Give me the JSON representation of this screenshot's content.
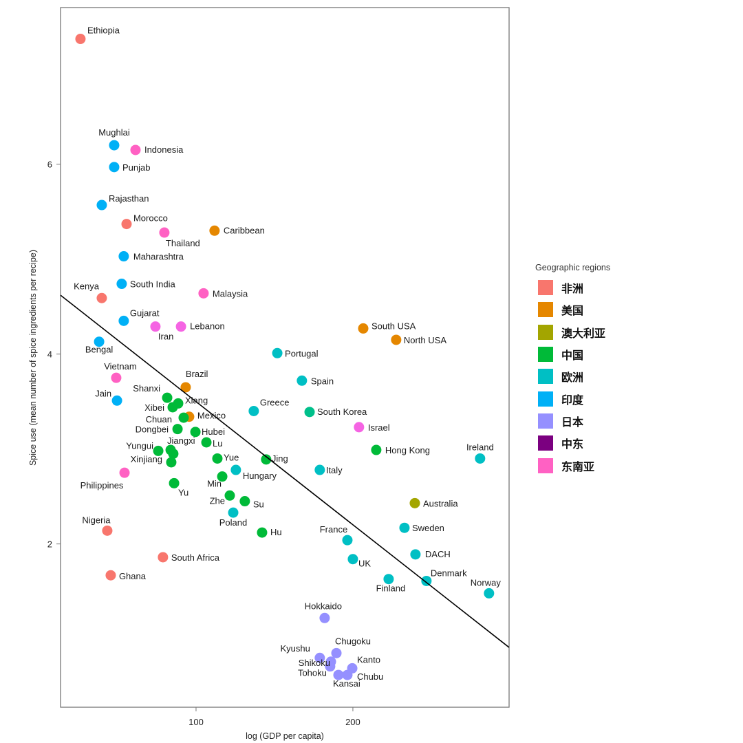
{
  "chart_data": {
    "type": "scatter",
    "title": "",
    "xlabel": "log (GDP per capita)",
    "ylabel": "Spice use (mean number of spice ingredients per recipe)",
    "xlim": [
      13.6,
      299.6
    ],
    "ylim": [
      0.28,
      7.65
    ],
    "xticks": [
      100,
      200
    ],
    "yticks": [
      2,
      4,
      6
    ],
    "grid": false,
    "legend": {
      "title": "Geographic regions",
      "placement": "right",
      "entries": [
        {
          "key": "africa",
          "label": "非洲",
          "color": "#F8766D"
        },
        {
          "key": "usa",
          "label": "美国",
          "color": "#E58700"
        },
        {
          "key": "australia",
          "label": "澳大利亚",
          "color": "#A3A500"
        },
        {
          "key": "china",
          "label": "中国",
          "color": "#00BA38"
        },
        {
          "key": "europe",
          "label": "欧洲",
          "color": "#00BFC4"
        },
        {
          "key": "india",
          "label": "印度",
          "color": "#00B0F6"
        },
        {
          "key": "japan",
          "label": "日本",
          "color": "#9590FF"
        },
        {
          "key": "middle_east",
          "label": "中东",
          "color": "#7B0080"
        },
        {
          "key": "southeast_asia",
          "label": "东南亚",
          "color": "#FF61C3"
        }
      ]
    },
    "trend_line": {
      "x": [
        13.6,
        299.6
      ],
      "y": [
        4.62,
        0.91
      ],
      "color": "#000000"
    },
    "points": [
      {
        "name": "Ethiopia",
        "region": "africa",
        "x": 26.3,
        "y": 7.32
      },
      {
        "name": "Mughlai",
        "region": "india",
        "x": 47.8,
        "y": 6.2
      },
      {
        "name": "Indonesia",
        "region": "southeast_asia",
        "x": 61.4,
        "y": 6.15
      },
      {
        "name": "Punjab",
        "region": "india",
        "x": 47.8,
        "y": 5.97
      },
      {
        "name": "Rajasthan",
        "region": "india",
        "x": 39.9,
        "y": 5.57
      },
      {
        "name": "Morocco",
        "region": "africa",
        "x": 55.7,
        "y": 5.37
      },
      {
        "name": "Thailand",
        "region": "southeast_asia",
        "x": 79.8,
        "y": 5.28
      },
      {
        "name": "Caribbean",
        "region": "usa",
        "x": 111.8,
        "y": 5.3
      },
      {
        "name": "Maharashtra",
        "region": "india",
        "x": 53.9,
        "y": 5.03
      },
      {
        "name": "South India",
        "region": "india",
        "x": 52.6,
        "y": 4.74
      },
      {
        "name": "Kenya",
        "region": "africa",
        "x": 39.9,
        "y": 4.59
      },
      {
        "name": "Malaysia",
        "region": "southeast_asia",
        "x": 104.8,
        "y": 4.64
      },
      {
        "name": "Gujarat",
        "region": "india",
        "x": 53.9,
        "y": 4.35
      },
      {
        "name": "Iran",
        "region": "middle_east_pink",
        "x": 74.1,
        "y": 4.29
      },
      {
        "name": "Lebanon",
        "region": "middle_east_pink",
        "x": 90.4,
        "y": 4.29
      },
      {
        "name": "Bengal",
        "region": "india",
        "x": 38.2,
        "y": 4.13
      },
      {
        "name": "South USA",
        "region": "usa",
        "x": 206.6,
        "y": 4.27
      },
      {
        "name": "North USA",
        "region": "usa",
        "x": 227.6,
        "y": 4.15
      },
      {
        "name": "Portugal",
        "region": "europe",
        "x": 151.8,
        "y": 4.01
      },
      {
        "name": "Vietnam",
        "region": "southeast_asia",
        "x": 49.1,
        "y": 3.75
      },
      {
        "name": "Spain",
        "region": "europe",
        "x": 167.5,
        "y": 3.72
      },
      {
        "name": "Brazil",
        "region": "usa",
        "x": 93.4,
        "y": 3.65
      },
      {
        "name": "Jain",
        "region": "india",
        "x": 49.6,
        "y": 3.51
      },
      {
        "name": "Shanxi",
        "region": "china",
        "x": 81.6,
        "y": 3.54
      },
      {
        "name": "Xiang",
        "region": "china",
        "x": 88.6,
        "y": 3.48
      },
      {
        "name": "Xibei",
        "region": "china",
        "x": 85.1,
        "y": 3.44
      },
      {
        "name": "Greece",
        "region": "europe",
        "x": 136.8,
        "y": 3.4
      },
      {
        "name": "South Korea",
        "region": "korea",
        "x": 172.4,
        "y": 3.39
      },
      {
        "name": "Mexico",
        "region": "usa",
        "x": 95.6,
        "y": 3.34
      },
      {
        "name": "Chuan",
        "region": "china",
        "x": 92.1,
        "y": 3.33
      },
      {
        "name": "Dongbei",
        "region": "china",
        "x": 88.2,
        "y": 3.21
      },
      {
        "name": "Hubei",
        "region": "china",
        "x": 99.6,
        "y": 3.18
      },
      {
        "name": "Israel",
        "region": "middle_east_pink",
        "x": 203.9,
        "y": 3.23
      },
      {
        "name": "Lu",
        "region": "china",
        "x": 106.6,
        "y": 3.07
      },
      {
        "name": "Hong Kong",
        "region": "china",
        "x": 214.9,
        "y": 2.99
      },
      {
        "name": "Ireland",
        "region": "europe",
        "x": 281.1,
        "y": 2.9
      },
      {
        "name": "Yungui",
        "region": "china",
        "x": 75.9,
        "y": 2.98
      },
      {
        "name": "Jiangxi",
        "region": "china",
        "x": 83.8,
        "y": 2.99
      },
      {
        "name": "",
        "region": "china",
        "x": 85.5,
        "y": 2.95
      },
      {
        "name": "Yue",
        "region": "china",
        "x": 113.6,
        "y": 2.9
      },
      {
        "name": "Jing",
        "region": "china",
        "x": 144.7,
        "y": 2.89
      },
      {
        "name": "Xinjiang",
        "region": "china",
        "x": 84.2,
        "y": 2.86
      },
      {
        "name": "Philippines",
        "region": "southeast_asia",
        "x": 54.4,
        "y": 2.75
      },
      {
        "name": "Hungary",
        "region": "europe",
        "x": 125.4,
        "y": 2.78
      },
      {
        "name": "Italy",
        "region": "europe",
        "x": 178.9,
        "y": 2.78
      },
      {
        "name": "Min",
        "region": "china",
        "x": 116.7,
        "y": 2.71
      },
      {
        "name": "Yu",
        "region": "china",
        "x": 86.0,
        "y": 2.64
      },
      {
        "name": "Zhe",
        "region": "china",
        "x": 121.5,
        "y": 2.51
      },
      {
        "name": "Su",
        "region": "china",
        "x": 131.1,
        "y": 2.45
      },
      {
        "name": "Australia",
        "region": "australia",
        "x": 239.5,
        "y": 2.43
      },
      {
        "name": "Poland",
        "region": "europe",
        "x": 123.7,
        "y": 2.33
      },
      {
        "name": "Nigeria",
        "region": "africa",
        "x": 43.4,
        "y": 2.14
      },
      {
        "name": "Sweden",
        "region": "europe",
        "x": 232.9,
        "y": 2.17
      },
      {
        "name": "Hu",
        "region": "china",
        "x": 142.1,
        "y": 2.12
      },
      {
        "name": "France",
        "region": "europe",
        "x": 196.5,
        "y": 2.04
      },
      {
        "name": "DACH",
        "region": "europe",
        "x": 239.9,
        "y": 1.89
      },
      {
        "name": "South Africa",
        "region": "africa",
        "x": 78.9,
        "y": 1.86
      },
      {
        "name": "UK",
        "region": "europe",
        "x": 200.0,
        "y": 1.84
      },
      {
        "name": "Ghana",
        "region": "africa",
        "x": 45.6,
        "y": 1.67
      },
      {
        "name": "Finland",
        "region": "europe",
        "x": 222.8,
        "y": 1.63
      },
      {
        "name": "Denmark",
        "region": "europe",
        "x": 246.9,
        "y": 1.61
      },
      {
        "name": "Norway",
        "region": "europe",
        "x": 286.8,
        "y": 1.48
      },
      {
        "name": "Hokkaido",
        "region": "japan",
        "x": 182.0,
        "y": 1.22
      },
      {
        "name": "Chugoku",
        "region": "japan",
        "x": 189.5,
        "y": 0.85
      },
      {
        "name": "Kyushu",
        "region": "japan",
        "x": 178.9,
        "y": 0.8
      },
      {
        "name": "Shikoku",
        "region": "japan",
        "x": 186.0,
        "y": 0.76
      },
      {
        "name": "Tohoku",
        "region": "japan",
        "x": 185.5,
        "y": 0.71
      },
      {
        "name": "Kanto",
        "region": "japan",
        "x": 199.6,
        "y": 0.69
      },
      {
        "name": "Kansai",
        "region": "japan",
        "x": 190.8,
        "y": 0.62
      },
      {
        "name": "Chubu",
        "region": "japan",
        "x": 196.5,
        "y": 0.62
      }
    ],
    "extra_point_colors": {
      "middle_east_pink": "#F564E3",
      "korea": "#00C08B"
    }
  }
}
